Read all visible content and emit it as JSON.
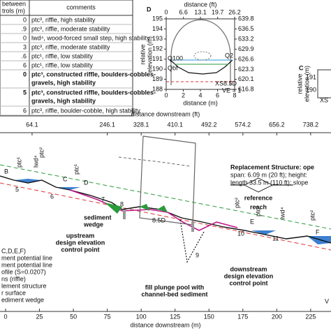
{
  "table": {
    "header": [
      [
        "between",
        "trols (m)"
      ],
      "comments"
    ],
    "rows": [
      {
        "length": "0",
        "comment": [
          "ptc³, riffle, high stability"
        ],
        "bold": false
      },
      {
        "length": ".9",
        "comment": [
          "ptc³, riffle, moderate stability"
        ],
        "bold": false
      },
      {
        "length": "0",
        "comment": [
          "lwd⁴, wood-forced small step, high stability"
        ],
        "bold": false
      },
      {
        "length": "3",
        "comment": [
          "ptc³, riffle, moderate stability"
        ],
        "bold": false
      },
      {
        "length": ".6",
        "comment": [
          "ptc¹, riffle, low stability"
        ],
        "bold": false
      },
      {
        "length": "6",
        "comment": [
          "ptc¹, riffle, low stability"
        ],
        "bold": false
      },
      {
        "length": "0",
        "comment": [
          "ptc³, constructed riffle, boulders-cobbles-",
          "gravels, high stability"
        ],
        "bold": true
      },
      {
        "length": "5",
        "comment": [
          "ptc³, constructed riffle, boulders-cobbles-",
          "gravels, high stability"
        ],
        "bold": true
      },
      {
        "length": "6",
        "comment": [
          "ptc³, riffle, boulder-cobble, high stability"
        ],
        "bold": false
      }
    ]
  },
  "panel_d": {
    "label": "D",
    "x_title": "distance (m)",
    "x2_title": "distance (ft)",
    "y_title": [
      "relative",
      "elevation (m)"
    ],
    "xlim": [
      0,
      8
    ],
    "xticks": [
      0,
      2,
      4,
      6,
      8
    ],
    "x2lim": [
      0,
      26.2
    ],
    "x2ticks": [
      0,
      6.6,
      13.1,
      19.7,
      26.2
    ],
    "ylim": [
      188,
      195
    ],
    "yticks": [
      188,
      189,
      190,
      191,
      192,
      193,
      194,
      195
    ],
    "y2lim": [
      616.8,
      639.8
    ],
    "y2ticks": [
      616.8,
      620.1,
      623.3,
      626.6,
      629.9,
      633.2,
      636.5,
      639.8
    ],
    "annotations": [
      "Q100",
      "Qbf",
      "Q2",
      "XS8.5D",
      "VE = 1"
    ]
  },
  "panel_c": {
    "label": "C",
    "y_title": [
      "relative",
      "elevation (m)"
    ],
    "ylim": [
      189.4,
      191.6
    ],
    "yticks": [
      191,
      190
    ],
    "annotation": "XS"
  },
  "main": {
    "x_title": "distance downstream (m)",
    "x2_title": "distance downstream (ft)",
    "xlim": [
      0,
      240
    ],
    "xticks": [
      0,
      25,
      50,
      75,
      100,
      125,
      150,
      175,
      200,
      225
    ],
    "x2lim": [
      0,
      787.4
    ],
    "x2ticks": [
      64.1,
      246.1,
      328.1,
      410.1,
      492.2,
      574.2,
      656.2,
      738.2
    ],
    "riffles": [
      "5",
      "6",
      "7",
      "8",
      "8.5D",
      "9",
      "10",
      "11"
    ],
    "points": [
      "B",
      "C",
      "D",
      "E",
      "F"
    ],
    "controls": [
      "ptc¹",
      "lwd⁴",
      "ptc²",
      "ptc¹",
      "ptc²",
      "ptc³",
      "lwd⁴",
      "ptc²"
    ],
    "structure_note": [
      "Replacement Structure: ope",
      "span: 6.09 m (20 ft); height:",
      "length 33.5 m (110 ft); slope"
    ],
    "reference_reach": [
      "reference",
      "reach"
    ],
    "sediment_wedge": [
      "sediment",
      "wedge"
    ],
    "upstream_control": [
      "upstream",
      "design elevation",
      "control point"
    ],
    "plunge_pool": [
      "fill plunge pool with",
      "channel-bed sediment"
    ],
    "downstream_control": [
      "downstream",
      "design elevation",
      "control point"
    ],
    "legend": [
      "C,D,E,F)",
      "ment potential line",
      "ment potential line",
      "ofile (S=0.0207)",
      "ns (riffle)",
      "lement structure",
      "r surface",
      "ediment wedge"
    ],
    "ve": "V"
  }
}
